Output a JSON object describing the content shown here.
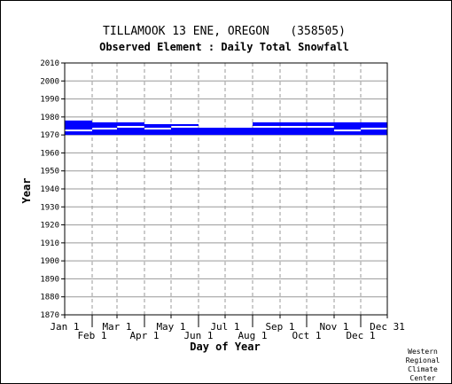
{
  "chart_data": {
    "type": "bar",
    "title": "TILLAMOOK 13 ENE, OREGON   (358505)",
    "subtitle": "Observed Element : Daily Total Snowfall",
    "xlabel": "Day of Year",
    "ylabel": "Year",
    "ylim": [
      1870,
      2010
    ],
    "y_ticks": [
      1870,
      1880,
      1890,
      1900,
      1910,
      1920,
      1930,
      1940,
      1950,
      1960,
      1970,
      1980,
      1990,
      2000,
      2010
    ],
    "xlim": [
      1,
      365
    ],
    "x_ticks": [
      {
        "label": "Jan 1",
        "day": 1
      },
      {
        "label": "Feb 1",
        "day": 32
      },
      {
        "label": "Mar 1",
        "day": 60
      },
      {
        "label": "Apr 1",
        "day": 91
      },
      {
        "label": "May 1",
        "day": 121
      },
      {
        "label": "Jun 1",
        "day": 152
      },
      {
        "label": "Jul 1",
        "day": 182
      },
      {
        "label": "Aug 1",
        "day": 213
      },
      {
        "label": "Sep 1",
        "day": 244
      },
      {
        "label": "Oct 1",
        "day": 274
      },
      {
        "label": "Nov 1",
        "day": 305
      },
      {
        "label": "Dec 1",
        "day": 335
      },
      {
        "label": "Dec 31",
        "day": 365
      }
    ],
    "grid": true,
    "bar_color": "#0000ff",
    "series": [
      {
        "segments": [
          {
            "start_day": 1,
            "end_day": 32,
            "year_from": 1970,
            "year_to": 1972
          },
          {
            "start_day": 1,
            "end_day": 32,
            "year_from": 1973,
            "year_to": 1978
          },
          {
            "start_day": 32,
            "end_day": 60,
            "year_from": 1970,
            "year_to": 1973
          },
          {
            "start_day": 32,
            "end_day": 60,
            "year_from": 1974,
            "year_to": 1977
          },
          {
            "start_day": 60,
            "end_day": 91,
            "year_from": 1970,
            "year_to": 1974
          },
          {
            "start_day": 60,
            "end_day": 91,
            "year_from": 1975,
            "year_to": 1977
          },
          {
            "start_day": 91,
            "end_day": 121,
            "year_from": 1970,
            "year_to": 1973
          },
          {
            "start_day": 91,
            "end_day": 121,
            "year_from": 1974,
            "year_to": 1976
          },
          {
            "start_day": 121,
            "end_day": 152,
            "year_from": 1970,
            "year_to": 1974
          },
          {
            "start_day": 121,
            "end_day": 152,
            "year_from": 1975,
            "year_to": 1976
          },
          {
            "start_day": 152,
            "end_day": 213,
            "year_from": 1970,
            "year_to": 1974
          },
          {
            "start_day": 213,
            "end_day": 305,
            "year_from": 1970,
            "year_to": 1974
          },
          {
            "start_day": 213,
            "end_day": 305,
            "year_from": 1975,
            "year_to": 1977
          },
          {
            "start_day": 305,
            "end_day": 335,
            "year_from": 1970,
            "year_to": 1972
          },
          {
            "start_day": 305,
            "end_day": 335,
            "year_from": 1973,
            "year_to": 1977
          },
          {
            "start_day": 335,
            "end_day": 365,
            "year_from": 1970,
            "year_to": 1973
          },
          {
            "start_day": 335,
            "end_day": 365,
            "year_from": 1974,
            "year_to": 1977
          }
        ]
      }
    ]
  },
  "credit": [
    "Western",
    "Regional",
    "Climate",
    "Center"
  ]
}
